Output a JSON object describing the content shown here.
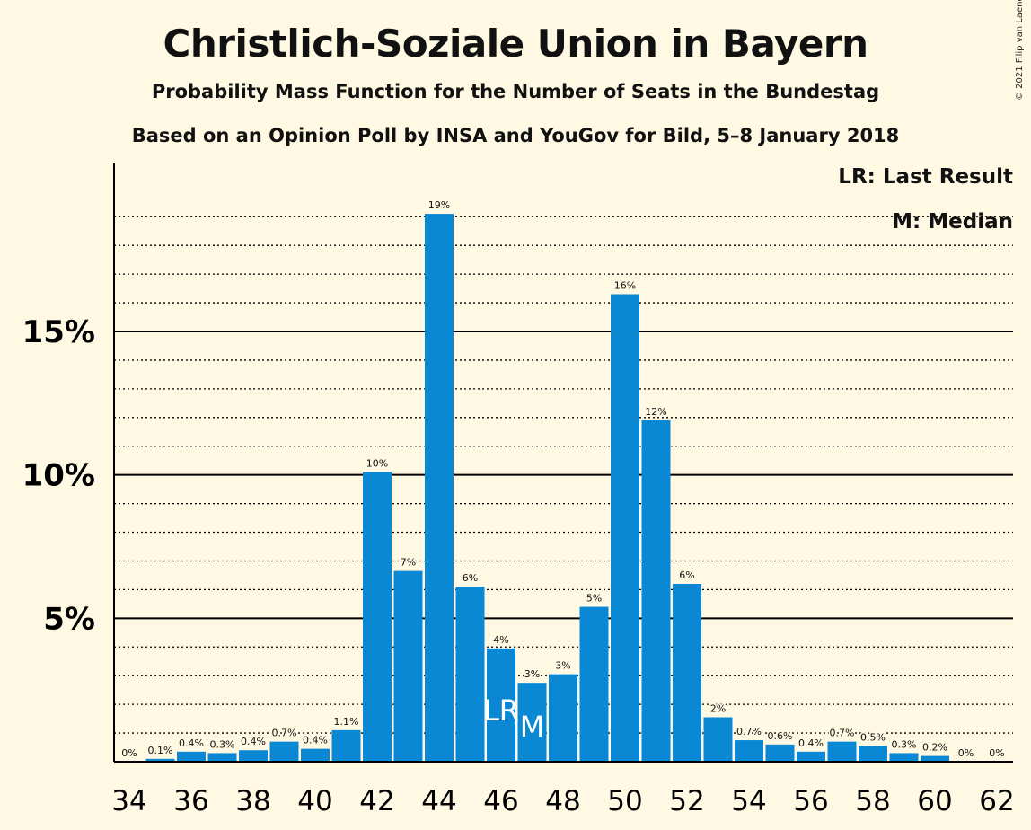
{
  "title": "Christlich-Soziale Union in Bayern",
  "subtitle": "Probability Mass Function for the Number of Seats in the Bundestag",
  "subtitle2": "Based on an Opinion Poll by INSA and YouGov for Bild, 5–8 January 2018",
  "copyright": "© 2021 Filip van Laenen",
  "legend": {
    "lr": "LR: Last Result",
    "m": "M: Median"
  },
  "colors": {
    "bar": "#0A88D4",
    "background": "#FFF9E3",
    "axis": "#000000"
  },
  "chart_data": {
    "type": "bar",
    "x": [
      34,
      35,
      36,
      37,
      38,
      39,
      40,
      41,
      42,
      43,
      44,
      45,
      46,
      47,
      48,
      49,
      50,
      51,
      52,
      53,
      54,
      55,
      56,
      57,
      58,
      59,
      60,
      61,
      62
    ],
    "values": [
      0,
      0.1,
      0.35,
      0.3,
      0.4,
      0.7,
      0.45,
      1.1,
      10.1,
      6.65,
      19.1,
      6.1,
      3.95,
      2.75,
      3.05,
      5.4,
      16.3,
      11.9,
      6.2,
      1.55,
      0.75,
      0.6,
      0.35,
      0.7,
      0.55,
      0.3,
      0.2,
      0,
      0
    ],
    "data_labels": [
      "0%",
      "0.1%",
      "0.4%",
      "0.3%",
      "0.4%",
      "0.7%",
      "0.4%",
      "1.1%",
      "10%",
      "7%",
      "19%",
      "6%",
      "4%",
      "3%",
      "3%",
      "5%",
      "16%",
      "12%",
      "6%",
      "2%",
      "0.7%",
      "0.6%",
      "0.4%",
      "0.7%",
      "0.5%",
      "0.3%",
      "0.2%",
      "0%",
      "0%"
    ],
    "x_tick_labels": [
      "34",
      "36",
      "38",
      "40",
      "42",
      "44",
      "46",
      "48",
      "50",
      "52",
      "54",
      "56",
      "58",
      "60",
      "62"
    ],
    "y_tick_labels": [
      "5%",
      "10%",
      "15%"
    ],
    "y_ticks": [
      5,
      10,
      15
    ],
    "ylim": [
      0,
      21
    ],
    "minor_grid_step": 1,
    "last_result": {
      "seat": 46,
      "label": "LR"
    },
    "median": {
      "seat": 47,
      "label": "M"
    },
    "grid": true,
    "legend_position": "top-right"
  }
}
